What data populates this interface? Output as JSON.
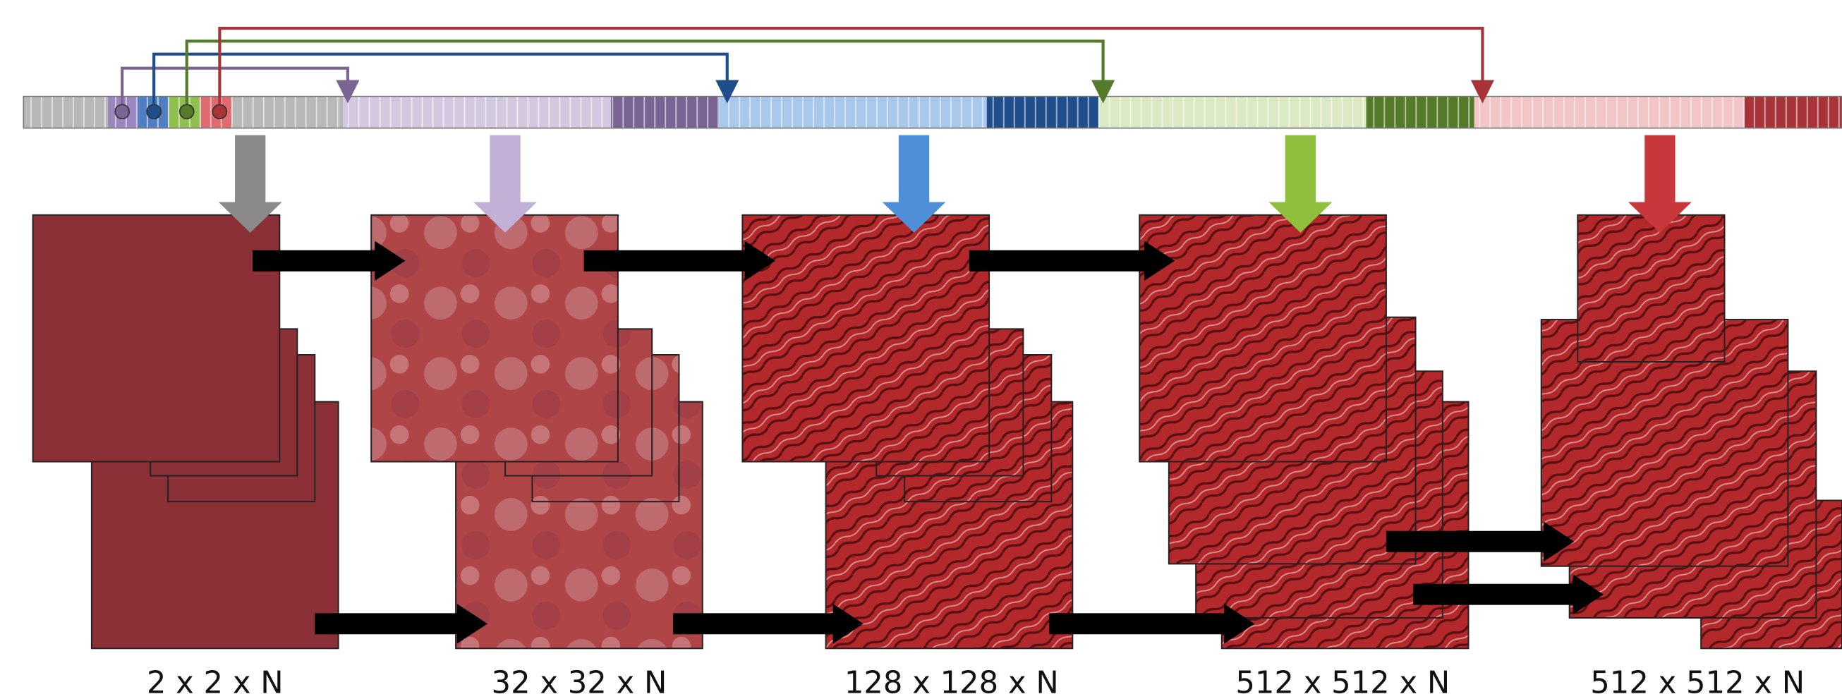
{
  "stages": [
    {
      "label": "2 x 2 x N"
    },
    {
      "label": "32 x 32 x N"
    },
    {
      "label": "128 x 128 x N"
    },
    {
      "label": "512 x 512 x N"
    },
    {
      "label": "512 x 512 x N"
    }
  ]
}
